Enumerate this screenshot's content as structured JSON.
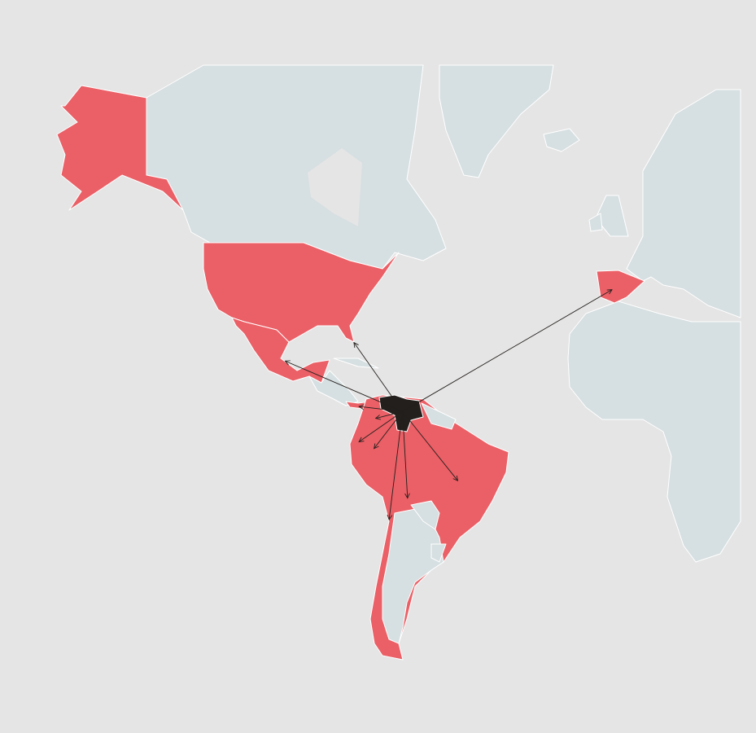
{
  "map": {
    "projection": "mercator",
    "colors": {
      "background": "#e5e5e5",
      "base_land": "#d6dfe1",
      "highlighted_land": "#eb5f66",
      "origin_land": "#231f1c",
      "border": "#ffffff",
      "arrow": "#231f1c"
    },
    "origin": {
      "lon": -66.5,
      "lat": 8.0
    },
    "flows": [
      {
        "lon": -81.0,
        "lat": 27.5
      },
      {
        "lon": -101.5,
        "lat": 22.5
      },
      {
        "lon": -4.0,
        "lat": 40.5
      },
      {
        "lon": -79.5,
        "lat": 9.5
      },
      {
        "lon": -74.5,
        "lat": 6.0
      },
      {
        "lon": -79.5,
        "lat": -1.0
      },
      {
        "lon": -75.0,
        "lat": -3.0
      },
      {
        "lon": -65.0,
        "lat": -17.5
      },
      {
        "lon": -70.5,
        "lat": -23.5
      },
      {
        "lon": -50.0,
        "lat": -12.5
      }
    ]
  }
}
